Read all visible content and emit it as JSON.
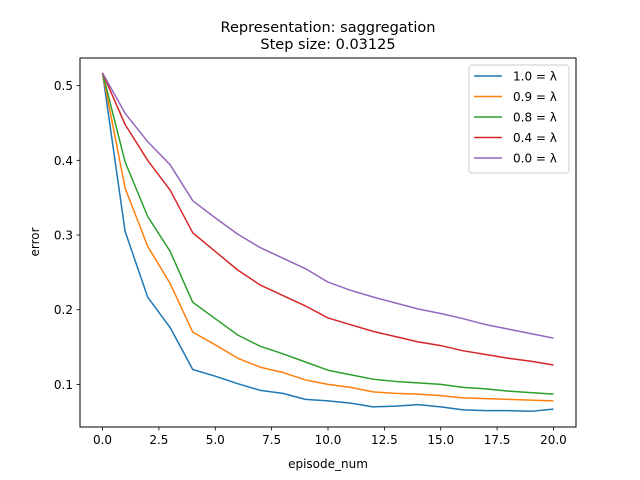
{
  "chart_data": {
    "type": "line",
    "title": "Representation: saggregation",
    "subtitle": "Step size: 0.03125",
    "xlabel": "episode_num",
    "ylabel": "error",
    "xlim": [
      -1,
      21
    ],
    "ylim": [
      0.043,
      0.537
    ],
    "xticks": [
      0,
      2.5,
      5,
      7.5,
      10,
      12.5,
      15,
      17.5,
      20
    ],
    "xtick_labels": [
      "0.0",
      "2.5",
      "5.0",
      "7.5",
      "10.0",
      "12.5",
      "15.0",
      "17.5",
      "20.0"
    ],
    "yticks": [
      0.1,
      0.2,
      0.3,
      0.4,
      0.5
    ],
    "ytick_labels": [
      "0.1",
      "0.2",
      "0.3",
      "0.4",
      "0.5"
    ],
    "grid": false,
    "legend_position": "top-right",
    "x": [
      0,
      1,
      2,
      3,
      4,
      5,
      6,
      7,
      8,
      9,
      10,
      11,
      12,
      13,
      14,
      15,
      16,
      17,
      18,
      19,
      20
    ],
    "series": [
      {
        "name": "1.0 = λ",
        "color": "#1f77b4",
        "values": [
          0.517,
          0.305,
          0.217,
          0.176,
          0.12,
          0.111,
          0.101,
          0.092,
          0.088,
          0.08,
          0.078,
          0.075,
          0.07,
          0.071,
          0.073,
          0.07,
          0.066,
          0.065,
          0.065,
          0.064,
          0.067
        ]
      },
      {
        "name": "0.9 = λ",
        "color": "#ff7f0e",
        "values": [
          0.517,
          0.363,
          0.285,
          0.235,
          0.17,
          0.153,
          0.135,
          0.123,
          0.116,
          0.106,
          0.1,
          0.096,
          0.09,
          0.088,
          0.087,
          0.085,
          0.082,
          0.081,
          0.08,
          0.079,
          0.078
        ]
      },
      {
        "name": "0.8 = λ",
        "color": "#2ca02c",
        "values": [
          0.517,
          0.398,
          0.325,
          0.278,
          0.21,
          0.188,
          0.166,
          0.151,
          0.141,
          0.13,
          0.119,
          0.113,
          0.107,
          0.104,
          0.102,
          0.1,
          0.096,
          0.094,
          0.091,
          0.089,
          0.087
        ]
      },
      {
        "name": "0.4 = λ",
        "color": "#d62728",
        "values": [
          0.517,
          0.448,
          0.4,
          0.36,
          0.303,
          0.278,
          0.253,
          0.233,
          0.219,
          0.205,
          0.189,
          0.18,
          0.171,
          0.164,
          0.157,
          0.152,
          0.145,
          0.14,
          0.135,
          0.131,
          0.126
        ]
      },
      {
        "name": "0.0 = λ",
        "color": "#9467bd",
        "values": [
          0.517,
          0.463,
          0.425,
          0.394,
          0.346,
          0.323,
          0.301,
          0.283,
          0.269,
          0.255,
          0.237,
          0.226,
          0.217,
          0.209,
          0.201,
          0.195,
          0.188,
          0.18,
          0.174,
          0.168,
          0.162
        ]
      }
    ]
  }
}
